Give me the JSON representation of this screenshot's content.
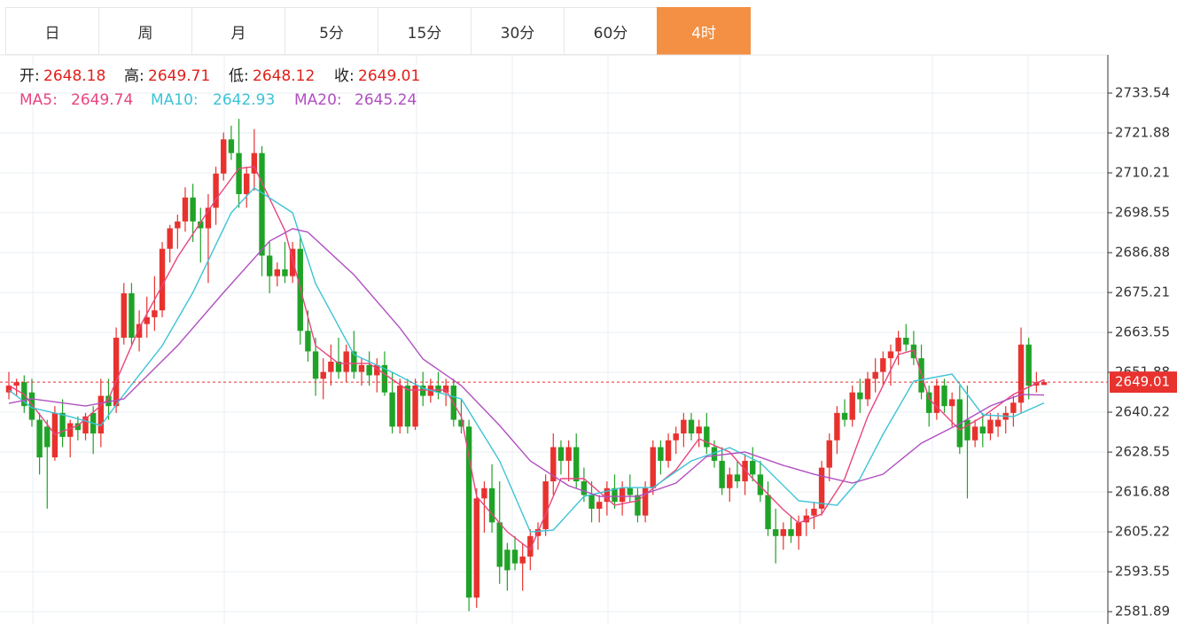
{
  "chart_data": {
    "type": "candlestick",
    "tabs": [
      "日",
      "周",
      "月",
      "5分",
      "15分",
      "30分",
      "60分",
      "4时"
    ],
    "active_tab": 7,
    "ohlc_labels": [
      "开:",
      "高:",
      "低:",
      "收:"
    ],
    "up_color": "#e8322e",
    "down_color": "#1fa327",
    "value_color": "#e0201a",
    "last_price_color": "#e8322e",
    "grid": true,
    "ylim": [
      2578.28,
      2744.69
    ],
    "yticks": [
      2733.54,
      2721.88,
      2710.21,
      2698.55,
      2686.88,
      2675.21,
      2663.55,
      2651.88,
      2640.22,
      2628.55,
      2616.88,
      2605.22,
      2593.55,
      2581.89
    ],
    "candles": [
      [
        2646,
        2652,
        2644,
        2648
      ],
      [
        2648,
        2650,
        2645,
        2649
      ],
      [
        2649,
        2651,
        2640,
        2642
      ],
      [
        2646,
        2650,
        2636,
        2638
      ],
      [
        2638,
        2640,
        2622,
        2627
      ],
      [
        2636,
        2638,
        2612,
        2630
      ],
      [
        2627,
        2642,
        2626,
        2640
      ],
      [
        2640,
        2644,
        2630,
        2633
      ],
      [
        2633,
        2638,
        2627,
        2637
      ],
      [
        2637,
        2639,
        2632,
        2635
      ],
      [
        2634,
        2640,
        2632,
        2639
      ],
      [
        2640,
        2642,
        2628,
        2634
      ],
      [
        2634,
        2650,
        2630,
        2645
      ],
      [
        2645,
        2650,
        2638,
        2642
      ],
      [
        2642,
        2665,
        2640,
        2662
      ],
      [
        2662,
        2678,
        2660,
        2675
      ],
      [
        2675,
        2678,
        2660,
        2662
      ],
      [
        2662,
        2670,
        2658,
        2666
      ],
      [
        2666,
        2674,
        2662,
        2668
      ],
      [
        2668,
        2680,
        2664,
        2670
      ],
      [
        2670,
        2690,
        2668,
        2688
      ],
      [
        2688,
        2695,
        2684,
        2694
      ],
      [
        2694,
        2698,
        2688,
        2696
      ],
      [
        2696,
        2706,
        2693,
        2703
      ],
      [
        2703,
        2707,
        2690,
        2696
      ],
      [
        2696,
        2700,
        2684,
        2694
      ],
      [
        2694,
        2704,
        2678,
        2700
      ],
      [
        2700,
        2712,
        2695,
        2710
      ],
      [
        2710,
        2722,
        2708,
        2720
      ],
      [
        2720,
        2724,
        2714,
        2716
      ],
      [
        2716,
        2726,
        2700,
        2704
      ],
      [
        2704,
        2712,
        2700,
        2710
      ],
      [
        2710,
        2723,
        2705,
        2716
      ],
      [
        2716,
        2718,
        2680,
        2686
      ],
      [
        2686,
        2690,
        2675,
        2680
      ],
      [
        2680,
        2684,
        2677,
        2682
      ],
      [
        2682,
        2690,
        2678,
        2680
      ],
      [
        2680,
        2690,
        2678,
        2688
      ],
      [
        2688,
        2692,
        2660,
        2664
      ],
      [
        2664,
        2670,
        2655,
        2658
      ],
      [
        2658,
        2662,
        2645,
        2650
      ],
      [
        2650,
        2656,
        2644,
        2652
      ],
      [
        2652,
        2660,
        2648,
        2655
      ],
      [
        2655,
        2662,
        2650,
        2652
      ],
      [
        2652,
        2660,
        2649,
        2658
      ],
      [
        2658,
        2664,
        2650,
        2652
      ],
      [
        2652,
        2656,
        2648,
        2654
      ],
      [
        2654,
        2658,
        2648,
        2651
      ],
      [
        2651,
        2656,
        2646,
        2654
      ],
      [
        2654,
        2658,
        2645,
        2646
      ],
      [
        2646,
        2652,
        2634,
        2636
      ],
      [
        2636,
        2650,
        2634,
        2648
      ],
      [
        2648,
        2650,
        2634,
        2636
      ],
      [
        2636,
        2650,
        2635,
        2648
      ],
      [
        2648,
        2652,
        2642,
        2645
      ],
      [
        2645,
        2650,
        2643,
        2648
      ],
      [
        2648,
        2652,
        2644,
        2646
      ],
      [
        2646,
        2650,
        2642,
        2648
      ],
      [
        2648,
        2650,
        2636,
        2638
      ],
      [
        2638,
        2644,
        2634,
        2636
      ],
      [
        2636,
        2638,
        2582,
        2586
      ],
      [
        2586,
        2618,
        2583,
        2615
      ],
      [
        2615,
        2620,
        2605,
        2618
      ],
      [
        2618,
        2625,
        2605,
        2608
      ],
      [
        2608,
        2620,
        2590,
        2595
      ],
      [
        2600,
        2602,
        2588,
        2594
      ],
      [
        2600,
        2604,
        2594,
        2596
      ],
      [
        2596,
        2602,
        2588,
        2598
      ],
      [
        2598,
        2606,
        2594,
        2604
      ],
      [
        2604,
        2608,
        2600,
        2606
      ],
      [
        2606,
        2622,
        2604,
        2620
      ],
      [
        2620,
        2634,
        2616,
        2630
      ],
      [
        2630,
        2632,
        2622,
        2626
      ],
      [
        2626,
        2632,
        2620,
        2630
      ],
      [
        2630,
        2634,
        2618,
        2620
      ],
      [
        2620,
        2624,
        2614,
        2616
      ],
      [
        2616,
        2620,
        2608,
        2612
      ],
      [
        2612,
        2616,
        2608,
        2614
      ],
      [
        2614,
        2620,
        2610,
        2618
      ],
      [
        2618,
        2622,
        2612,
        2614
      ],
      [
        2614,
        2620,
        2610,
        2618
      ],
      [
        2618,
        2622,
        2614,
        2616
      ],
      [
        2616,
        2618,
        2608,
        2610
      ],
      [
        2610,
        2620,
        2608,
        2618
      ],
      [
        2618,
        2632,
        2616,
        2630
      ],
      [
        2630,
        2632,
        2622,
        2626
      ],
      [
        2626,
        2634,
        2624,
        2632
      ],
      [
        2632,
        2636,
        2628,
        2634
      ],
      [
        2634,
        2640,
        2630,
        2638
      ],
      [
        2638,
        2640,
        2632,
        2634
      ],
      [
        2634,
        2638,
        2630,
        2636
      ],
      [
        2636,
        2640,
        2628,
        2630
      ],
      [
        2630,
        2632,
        2624,
        2626
      ],
      [
        2626,
        2630,
        2616,
        2618
      ],
      [
        2618,
        2624,
        2614,
        2622
      ],
      [
        2622,
        2626,
        2618,
        2620
      ],
      [
        2620,
        2628,
        2616,
        2626
      ],
      [
        2626,
        2630,
        2620,
        2622
      ],
      [
        2622,
        2626,
        2614,
        2616
      ],
      [
        2616,
        2620,
        2604,
        2606
      ],
      [
        2606,
        2612,
        2596,
        2604
      ],
      [
        2604,
        2608,
        2600,
        2606
      ],
      [
        2606,
        2610,
        2602,
        2604
      ],
      [
        2604,
        2610,
        2600,
        2608
      ],
      [
        2608,
        2612,
        2604,
        2610
      ],
      [
        2610,
        2614,
        2606,
        2612
      ],
      [
        2612,
        2626,
        2610,
        2624
      ],
      [
        2624,
        2634,
        2620,
        2632
      ],
      [
        2632,
        2642,
        2628,
        2640
      ],
      [
        2640,
        2644,
        2636,
        2638
      ],
      [
        2638,
        2648,
        2636,
        2646
      ],
      [
        2646,
        2650,
        2640,
        2644
      ],
      [
        2644,
        2652,
        2642,
        2650
      ],
      [
        2650,
        2656,
        2646,
        2652
      ],
      [
        2652,
        2658,
        2648,
        2656
      ],
      [
        2656,
        2660,
        2648,
        2658
      ],
      [
        2658,
        2664,
        2654,
        2662
      ],
      [
        2662,
        2666,
        2658,
        2660
      ],
      [
        2660,
        2664,
        2654,
        2656
      ],
      [
        2656,
        2660,
        2644,
        2646
      ],
      [
        2646,
        2648,
        2636,
        2640
      ],
      [
        2640,
        2650,
        2638,
        2648
      ],
      [
        2648,
        2650,
        2640,
        2642
      ],
      [
        2642,
        2646,
        2636,
        2644
      ],
      [
        2644,
        2648,
        2628,
        2630
      ],
      [
        2638,
        2648,
        2615,
        2632
      ],
      [
        2632,
        2638,
        2630,
        2636
      ],
      [
        2636,
        2640,
        2630,
        2634
      ],
      [
        2634,
        2640,
        2632,
        2638
      ],
      [
        2636,
        2640,
        2633,
        2638
      ],
      [
        2638,
        2642,
        2634,
        2640
      ],
      [
        2640,
        2645,
        2636,
        2643
      ],
      [
        2643,
        2665,
        2640,
        2660
      ],
      [
        2660,
        2662,
        2644,
        2648
      ],
      [
        2648,
        2652,
        2646,
        2649
      ],
      [
        2648.18,
        2649.71,
        2648.12,
        2649.01
      ]
    ],
    "ma": [
      {
        "name": "MA5:",
        "color": "#e8457f",
        "x": [
          0,
          2,
          6,
          9,
          13,
          17,
          22,
          27,
          30,
          32,
          36,
          40,
          43,
          47,
          52,
          57,
          59,
          61,
          65,
          68,
          72,
          75,
          79,
          82,
          87,
          90,
          94,
          97,
          101,
          103,
          106,
          109,
          112,
          116,
          118,
          120,
          124,
          127,
          131,
          135
        ],
        "values": [
          2648.0,
          2645.41,
          2633.75,
          2636.34,
          2644.12,
          2664.85,
          2685.59,
          2702.44,
          2711.51,
          2712.03,
          2693.36,
          2659.67,
          2654.48,
          2654.48,
          2646.71,
          2646.71,
          2638.93,
          2615.6,
          2605.23,
          2600.05,
          2620.79,
          2620.79,
          2613.01,
          2614.31,
          2623.38,
          2632.45,
          2628.56,
          2620.79,
          2611.71,
          2607.83,
          2610.42,
          2620.79,
          2638.93,
          2657.08,
          2658.37,
          2644.12,
          2635.04,
          2638.93,
          2645.41,
          2649.74
        ]
      },
      {
        "name": "MA10:",
        "color": "#3cc3d6",
        "x": [
          0,
          3,
          8,
          12,
          15,
          20,
          24,
          29,
          32,
          37,
          40,
          45,
          50,
          54,
          59,
          64,
          68,
          71,
          75,
          80,
          84,
          89,
          94,
          98,
          103,
          108,
          111,
          114,
          118,
          123,
          127,
          131,
          135
        ],
        "values": [
          2646.71,
          2641.52,
          2638.93,
          2636.34,
          2645.41,
          2659.67,
          2675.22,
          2698.55,
          2705.81,
          2698.55,
          2677.81,
          2657.08,
          2651.89,
          2647.23,
          2644.12,
          2625.97,
          2605.23,
          2605.75,
          2615.6,
          2618.19,
          2618.19,
          2625.97,
          2629.86,
          2625.45,
          2614.31,
          2613.01,
          2620.79,
          2633.75,
          2649.3,
          2651.37,
          2639.45,
          2638.93,
          2642.93
        ]
      },
      {
        "name": "MA20:",
        "color": "#b14fc2",
        "x": [
          0,
          3,
          10,
          15,
          22,
          28,
          34,
          37,
          39,
          45,
          51,
          54,
          59,
          64,
          68,
          73,
          77,
          82,
          87,
          91,
          96,
          101,
          105,
          110,
          114,
          119,
          124,
          128,
          132,
          135
        ],
        "values": [
          2642.82,
          2644.12,
          2642.04,
          2644.12,
          2659.67,
          2675.22,
          2690.25,
          2693.88,
          2692.85,
          2680.4,
          2664.85,
          2655.78,
          2648.0,
          2636.34,
          2625.97,
          2618.71,
          2615.6,
          2615.6,
          2619.49,
          2627.27,
          2628.56,
          2624.67,
          2622.08,
          2619.49,
          2622.08,
          2631.16,
          2636.86,
          2642.04,
          2645.41,
          2645.24
        ]
      }
    ]
  }
}
